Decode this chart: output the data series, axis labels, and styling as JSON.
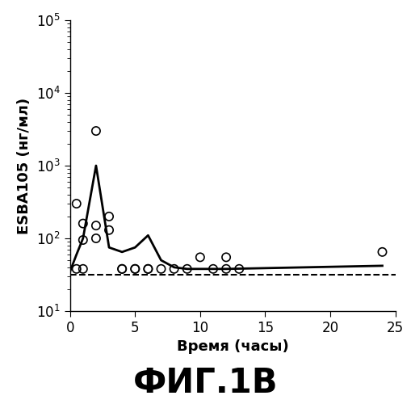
{
  "title": "ФИГ.1В",
  "xlabel": "Время (часы)",
  "ylabel": "ESBA105 (нг/мл)",
  "xlim": [
    0,
    25
  ],
  "ylim": [
    10,
    100000
  ],
  "xticks": [
    0,
    5,
    10,
    15,
    20,
    25
  ],
  "solid_line_x": [
    0,
    0.5,
    1,
    2,
    3,
    4,
    5,
    6,
    7,
    8,
    9,
    10,
    11,
    12,
    24
  ],
  "solid_line_y": [
    35,
    60,
    100,
    1000,
    75,
    65,
    75,
    110,
    50,
    40,
    38,
    38,
    38,
    38,
    42
  ],
  "dashed_line_x": [
    0,
    25
  ],
  "dashed_line_y": [
    32,
    32
  ],
  "scatter_x": [
    0.5,
    0.5,
    1,
    1,
    1,
    2,
    2,
    2,
    3,
    3,
    4,
    4,
    5,
    5,
    6,
    6,
    7,
    8,
    9,
    10,
    11,
    12,
    12,
    13,
    24
  ],
  "scatter_y": [
    300,
    38,
    95,
    160,
    38,
    3000,
    150,
    100,
    200,
    130,
    38,
    38,
    38,
    38,
    38,
    38,
    38,
    38,
    38,
    55,
    38,
    55,
    38,
    38,
    65
  ],
  "line_color": "#000000",
  "scatter_color": "none",
  "scatter_edge_color": "#000000",
  "background_color": "#ffffff",
  "title_fontsize": 30,
  "label_fontsize": 13,
  "tick_fontsize": 12
}
